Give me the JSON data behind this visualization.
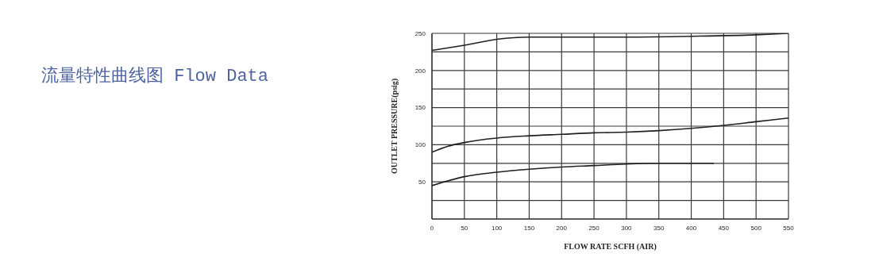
{
  "chart_data": {
    "type": "line",
    "title": "流量特性曲线图 Flow Data",
    "xlabel": "FLOW RATE SCFH (AIR)",
    "ylabel": "OUTLET PRESSURE(psig)",
    "xlim": [
      0,
      550
    ],
    "xticks": [
      0,
      50,
      100,
      150,
      200,
      250,
      300,
      350,
      400,
      450,
      500,
      550
    ],
    "ylim": [
      0,
      250
    ],
    "yticks": [
      {
        "value": 0,
        "label": null
      },
      {
        "value": 25,
        "label": null
      },
      50,
      {
        "value": 75,
        "label": null
      },
      100,
      {
        "value": 125,
        "label": null
      },
      150,
      {
        "value": 175,
        "label": null
      },
      200,
      {
        "value": 225,
        "label": null
      },
      250
    ],
    "grid": true,
    "series": [
      {
        "color": "#231f20",
        "x": [
          0,
          50,
          100,
          150,
          200,
          250,
          300,
          400,
          500,
          550
        ],
        "values": [
          227,
          234,
          242,
          245,
          245,
          245,
          245,
          246,
          248,
          250
        ]
      },
      {
        "color": "#231f20",
        "x": [
          0,
          25,
          50,
          100,
          150,
          200,
          250,
          300,
          350,
          400,
          450,
          500,
          550
        ],
        "values": [
          90,
          98,
          103,
          109,
          112,
          114,
          116,
          117,
          119,
          122,
          126,
          131,
          136
        ]
      },
      {
        "color": "#231f20",
        "x": [
          0,
          50,
          100,
          150,
          200,
          250,
          300,
          350,
          400,
          435
        ],
        "values": [
          45,
          57,
          63,
          67,
          70,
          72,
          74,
          75,
          75,
          75
        ]
      }
    ]
  }
}
